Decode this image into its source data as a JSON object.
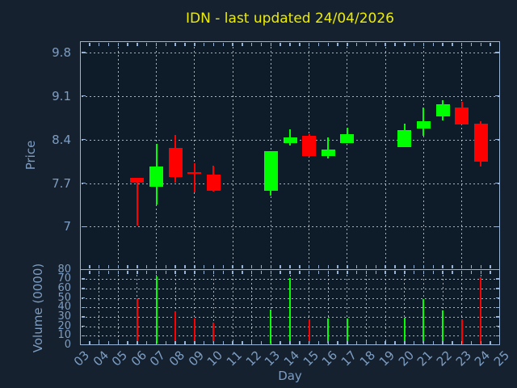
{
  "title": "IDN - last updated 24/04/2026",
  "colors": {
    "up": "#00ff00",
    "down": "#ff0000",
    "figure_background": "#15212f",
    "plot_background": "#0e1b28",
    "spine": "#97b4d7",
    "grid": "#c3ccd4",
    "tick_label": "#7d9dc3",
    "title": "#eded00"
  },
  "chart_data": {
    "type": "candlestick_with_volume",
    "title": "IDN - last updated 24/04/2026",
    "xlabel": "Day",
    "price_ylabel": "Price",
    "volume_ylabel": "Volume (0000)",
    "grid": true,
    "xlim": [
      3,
      25
    ],
    "x_tick_labels": [
      "03",
      "04",
      "05",
      "06",
      "07",
      "08",
      "09",
      "10",
      "11",
      "12",
      "13",
      "14",
      "15",
      "16",
      "17",
      "18",
      "19",
      "20",
      "21",
      "22",
      "23",
      "24",
      "25"
    ],
    "price_ylim": [
      6.31,
      9.98
    ],
    "price_yticks": [
      7,
      7.7,
      8.4,
      9.1,
      9.8
    ],
    "price_ytick_labels": [
      "7",
      "7.7",
      "8.4",
      "9.1",
      "9.8"
    ],
    "volume_ylim": [
      0,
      80
    ],
    "volume_yticks": [
      0,
      10,
      20,
      30,
      40,
      50,
      60,
      70,
      80
    ],
    "volume_ytick_labels": [
      "0",
      "10",
      "20",
      "30",
      "40",
      "50",
      "60",
      "70",
      "80"
    ],
    "volume_grid_values": [
      10,
      20,
      30,
      40,
      50,
      60,
      70
    ],
    "price_grid_days": [
      5,
      7,
      9,
      11,
      13,
      15,
      17,
      19,
      21,
      23
    ],
    "volume_grid_days": [
      4,
      5,
      6,
      7,
      8,
      9,
      10,
      11,
      12,
      13,
      14,
      15,
      16,
      17,
      18,
      19,
      20,
      21,
      22,
      23,
      24
    ],
    "candles": [
      {
        "day": 6,
        "open": 7.79,
        "high": 7.79,
        "low": 7.02,
        "close": 7.7,
        "volume": 50
      },
      {
        "day": 7,
        "open": 7.64,
        "high": 8.33,
        "low": 7.36,
        "close": 7.96,
        "volume": 73
      },
      {
        "day": 8,
        "open": 8.27,
        "high": 8.47,
        "low": 7.71,
        "close": 7.8,
        "volume": 36
      },
      {
        "day": 9,
        "open": 7.88,
        "high": 8.02,
        "low": 7.55,
        "close": 7.87,
        "volume": 28
      },
      {
        "day": 10,
        "open": 7.83,
        "high": 7.98,
        "low": 7.56,
        "close": 7.57,
        "volume": 24
      },
      {
        "day": 13,
        "open": 7.58,
        "high": 8.21,
        "low": 7.5,
        "close": 8.21,
        "volume": 38
      },
      {
        "day": 14,
        "open": 8.34,
        "high": 8.56,
        "low": 8.31,
        "close": 8.44,
        "volume": 71
      },
      {
        "day": 15,
        "open": 8.46,
        "high": 8.49,
        "low": 8.12,
        "close": 8.14,
        "volume": 27
      },
      {
        "day": 16,
        "open": 8.13,
        "high": 8.43,
        "low": 8.1,
        "close": 8.24,
        "volume": 28
      },
      {
        "day": 17,
        "open": 8.34,
        "high": 8.59,
        "low": 8.34,
        "close": 8.48,
        "volume": 28
      },
      {
        "day": 20,
        "open": 8.28,
        "high": 8.66,
        "low": 8.28,
        "close": 8.55,
        "volume": 29
      },
      {
        "day": 21,
        "open": 8.58,
        "high": 8.91,
        "low": 8.46,
        "close": 8.69,
        "volume": 49
      },
      {
        "day": 22,
        "open": 8.77,
        "high": 9.03,
        "low": 8.71,
        "close": 8.97,
        "volume": 37
      },
      {
        "day": 23,
        "open": 8.92,
        "high": 9.01,
        "low": 8.64,
        "close": 8.64,
        "volume": 27
      },
      {
        "day": 24,
        "open": 8.66,
        "high": 8.69,
        "low": 7.96,
        "close": 8.05,
        "volume": 72
      }
    ]
  }
}
